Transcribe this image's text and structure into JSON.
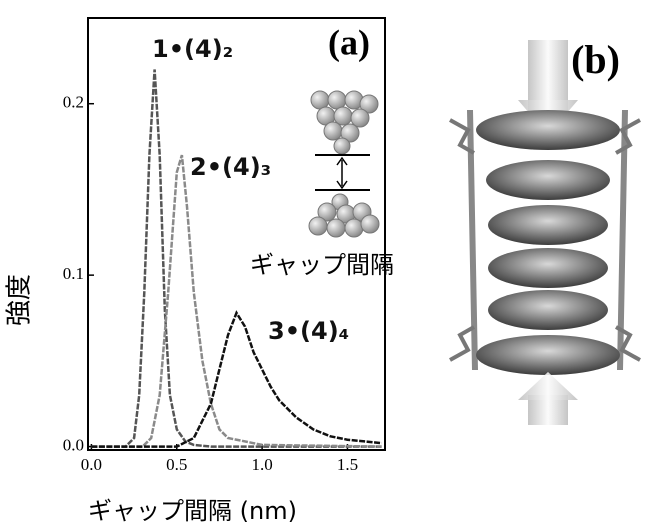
{
  "chart_data": {
    "type": "line",
    "x_label": "ギャップ間隔 (nm)",
    "y_label": "強度",
    "panel_label": "(a)",
    "inset_label": "ギャップ間隔",
    "side_panel_label": "(b)",
    "xlim": [
      -0.02,
      1.72
    ],
    "ylim": [
      -0.002,
      0.25
    ],
    "xticks": [
      {
        "value": 0,
        "label": "0.0"
      },
      0.5,
      {
        "value": 1,
        "label": "1.0"
      },
      1.5
    ],
    "yticks": [
      {
        "value": 0,
        "label": "0.0"
      },
      0.1,
      0.2
    ],
    "series": [
      {
        "name": "1•(4)₂",
        "color": "#555555",
        "x": [
          0,
          0.2,
          0.25,
          0.28,
          0.31,
          0.34,
          0.37,
          0.4,
          0.43,
          0.46,
          0.5,
          0.55,
          0.6,
          0.7,
          1.7
        ],
        "values": [
          0,
          0,
          0.005,
          0.03,
          0.09,
          0.17,
          0.22,
          0.17,
          0.08,
          0.03,
          0.01,
          0.003,
          0.001,
          0,
          0
        ]
      },
      {
        "name": "2•(4)₃",
        "color": "#8a8a8a",
        "x": [
          0,
          0.3,
          0.35,
          0.4,
          0.45,
          0.5,
          0.53,
          0.56,
          0.6,
          0.65,
          0.7,
          0.75,
          0.8,
          1.0,
          1.7
        ],
        "values": [
          0,
          0,
          0.005,
          0.03,
          0.09,
          0.16,
          0.17,
          0.14,
          0.09,
          0.05,
          0.025,
          0.01,
          0.005,
          0.001,
          0
        ]
      },
      {
        "name": "3•(4)₄",
        "color": "#111111",
        "x": [
          0,
          0.5,
          0.6,
          0.7,
          0.75,
          0.8,
          0.85,
          0.9,
          0.95,
          1.0,
          1.05,
          1.1,
          1.2,
          1.3,
          1.4,
          1.5,
          1.6,
          1.7
        ],
        "values": [
          0,
          0,
          0.005,
          0.025,
          0.045,
          0.065,
          0.078,
          0.07,
          0.055,
          0.045,
          0.035,
          0.027,
          0.017,
          0.01,
          0.006,
          0.004,
          0.003,
          0.002
        ]
      }
    ]
  }
}
